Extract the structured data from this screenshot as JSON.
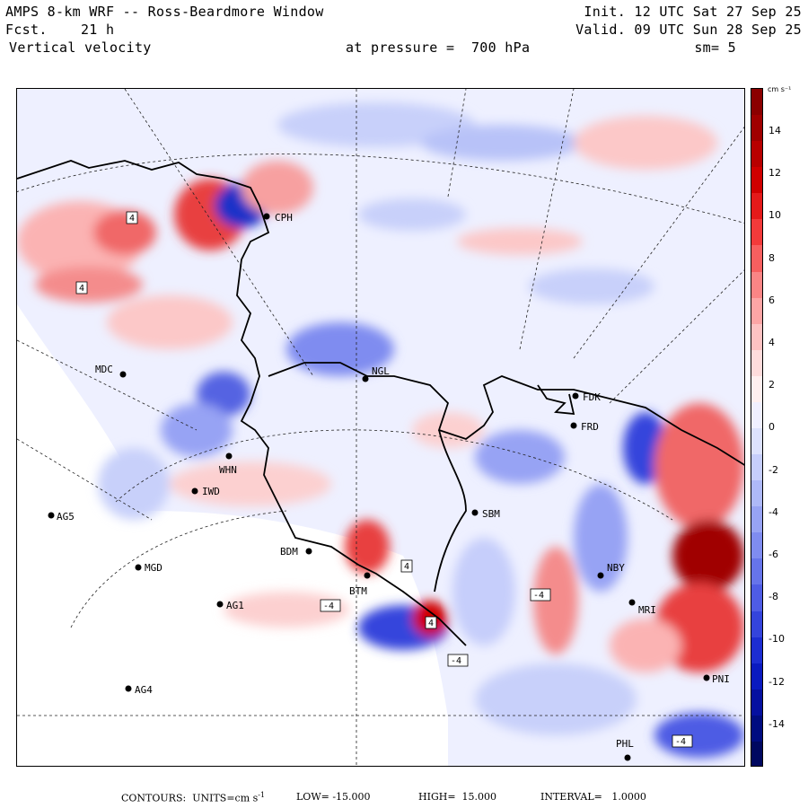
{
  "header": {
    "line1_left": "AMPS 8-km WRF -- Ross-Beardmore Window",
    "line2_left": "Fcst.    21 h",
    "line3_left": "Vertical velocity",
    "line1_right": "Init. 12 UTC Sat 27 Sep 25",
    "line2_right": "Valid. 09 UTC Sun 28 Sep 25",
    "pressure_label": "at pressure =  700 hPa",
    "smoothing": "sm= 5"
  },
  "colorbar": {
    "units": "cm s⁻¹",
    "ticks": [
      "14",
      "12",
      "10",
      "8",
      "6",
      "4",
      "2",
      "0",
      "-2",
      "-4",
      "-6",
      "-8",
      "-10",
      "-12",
      "-14"
    ],
    "colors": [
      "#8b0000",
      "#a00000",
      "#b80000",
      "#d00000",
      "#e41a1a",
      "#f23a3a",
      "#f75f5f",
      "#fa8585",
      "#fca5a5",
      "#fdc2c2",
      "#fedcdc",
      "#fff0f0",
      "#f0f0ff",
      "#dde2fd",
      "#c6cefb",
      "#aeb9f8",
      "#97a3f4",
      "#7f8cf0",
      "#6674ea",
      "#4e5ce4",
      "#3444dc",
      "#1c2dd2",
      "#0a1ac0",
      "#0510a0",
      "#000c80",
      "#000860"
    ]
  },
  "stations": [
    {
      "code": "CPH"
    },
    {
      "code": "MDC"
    },
    {
      "code": "NGL"
    },
    {
      "code": "FDK"
    },
    {
      "code": "FRD"
    },
    {
      "code": "WHN"
    },
    {
      "code": "IWD"
    },
    {
      "code": "AG5"
    },
    {
      "code": "SBM"
    },
    {
      "code": "BDM"
    },
    {
      "code": "MGD"
    },
    {
      "code": "BTM"
    },
    {
      "code": "NBY"
    },
    {
      "code": "AG1"
    },
    {
      "code": "AG4"
    },
    {
      "code": "PHL"
    },
    {
      "code": "MRI"
    },
    {
      "code": "PNI"
    }
  ],
  "contour_labels": [
    "4",
    "4",
    "4",
    "-4",
    "-4",
    "-4",
    "4",
    "-4"
  ],
  "footer": {
    "contours": "CONTOURS:  UNITS=cm s",
    "units_exp": "-1",
    "low": "LOW= -15.000",
    "high": "HIGH=  15.000",
    "interval": "INTERVAL=   1.0000"
  }
}
